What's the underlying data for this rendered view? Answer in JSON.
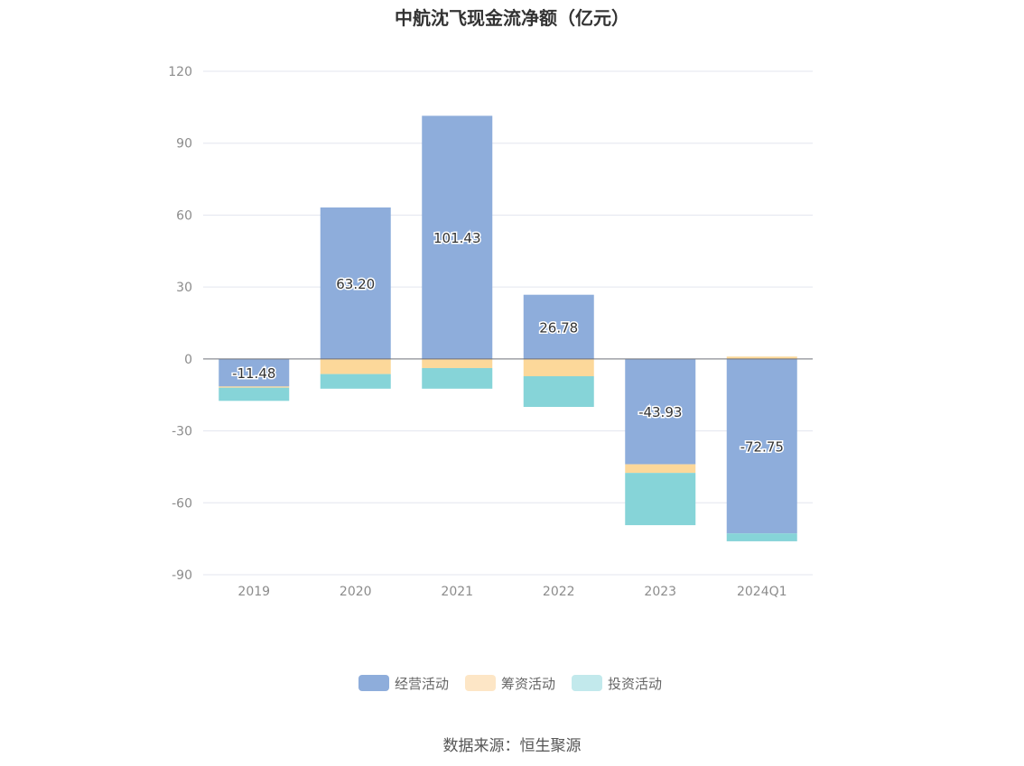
{
  "chart_data": {
    "type": "bar",
    "stacked": true,
    "title": "中航沈飞现金流净额（亿元）",
    "categories": [
      "2019",
      "2020",
      "2021",
      "2022",
      "2023",
      "2024Q1"
    ],
    "series": [
      {
        "name": "经营活动",
        "color": "#8eaddb",
        "values": [
          -11.48,
          63.2,
          101.43,
          26.78,
          -43.93,
          -72.75
        ],
        "value_labels": [
          "-11.48",
          "63.20",
          "101.43",
          "26.78",
          "-43.93",
          "-72.75"
        ]
      },
      {
        "name": "筹资活动",
        "color": "#fcd89a",
        "values": [
          -0.5,
          -6.3,
          -3.8,
          -7.2,
          -3.6,
          1.0
        ]
      },
      {
        "name": "投资活动",
        "color": "#86d4d8",
        "values": [
          -5.5,
          -6.1,
          -8.6,
          -12.8,
          -21.8,
          -3.3
        ]
      }
    ],
    "yticks": [
      120,
      90,
      60,
      30,
      0,
      -30,
      -60,
      -90
    ],
    "ylim": [
      -90,
      120
    ],
    "grid": true,
    "legend": "bottom-center",
    "legend_colors": [
      "#8eaddb",
      "#fde6c6",
      "#c2e9ec"
    ]
  },
  "source": "数据来源：恒生聚源"
}
